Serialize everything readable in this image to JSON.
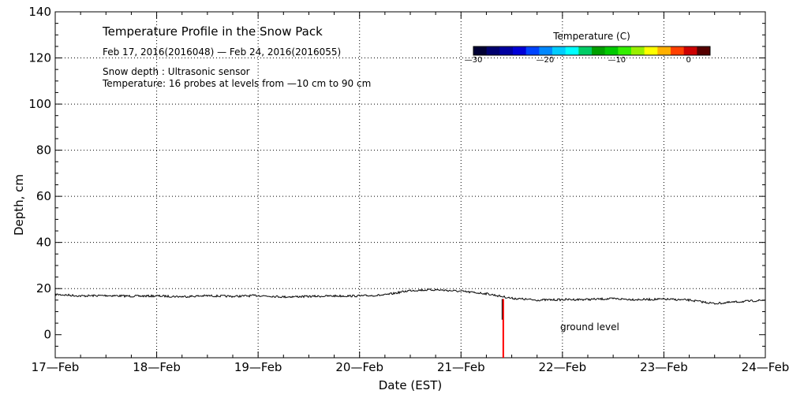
{
  "chart_data": {
    "type": "line",
    "title": "Temperature Profile in the Snow Pack",
    "subtitle": "Feb 17, 2016(2016048) — Feb 24, 2016(2016055)",
    "notes": [
      "Snow depth : Ultrasonic sensor",
      "Temperature: 16 probes at levels from —10 cm to 90 cm"
    ],
    "xlabel": "Date (EST)",
    "ylabel": "Depth, cm",
    "xlim": [
      "17-Feb",
      "24-Feb"
    ],
    "ylim": [
      -10,
      140
    ],
    "x_ticks": [
      "17—Feb",
      "18—Feb",
      "19—Feb",
      "20—Feb",
      "21—Feb",
      "22—Feb",
      "23—Feb",
      "24—Feb"
    ],
    "y_ticks": [
      "0",
      "20",
      "40",
      "60",
      "80",
      "100",
      "120",
      "140"
    ],
    "grid": true,
    "annotation": "ground level",
    "series": [
      {
        "color": "#000000",
        "x": [
          "17-Feb 00:00",
          "17-Feb 06:00",
          "17-Feb 12:00",
          "17-Feb 18:00",
          "18-Feb 00:00",
          "18-Feb 06:00",
          "18-Feb 12:00",
          "18-Feb 18:00",
          "19-Feb 00:00",
          "19-Feb 06:00",
          "19-Feb 12:00",
          "19-Feb 18:00",
          "20-Feb 00:00",
          "20-Feb 06:00",
          "20-Feb 12:00",
          "20-Feb 18:00",
          "21-Feb 00:00",
          "21-Feb 06:00",
          "21-Feb 12:00",
          "21-Feb 18:00",
          "22-Feb 00:00",
          "22-Feb 06:00",
          "22-Feb 12:00",
          "22-Feb 18:00",
          "23-Feb 00:00",
          "23-Feb 06:00",
          "23-Feb 12:00",
          "23-Feb 18:00",
          "24-Feb 00:00"
        ],
        "y": [
          17.5,
          16.8,
          17.0,
          16.7,
          16.8,
          16.5,
          16.9,
          16.6,
          17.0,
          16.4,
          16.6,
          16.8,
          16.8,
          17.2,
          19.2,
          19.5,
          18.8,
          17.8,
          15.8,
          15.0,
          15.2,
          15.3,
          15.6,
          15.2,
          15.4,
          15.0,
          13.5,
          14.3,
          15.0
        ]
      }
    ],
    "colorbar": {
      "label": "Temperature (C)",
      "ticks": [
        "—30",
        "—20",
        "—10",
        "0"
      ],
      "colors": [
        "#000033",
        "#00006e",
        "#0000a0",
        "#0000d8",
        "#0044ff",
        "#0088ff",
        "#00ccff",
        "#00ffff",
        "#00cc66",
        "#00a000",
        "#00c800",
        "#33ee00",
        "#99f000",
        "#ffff00",
        "#ffb000",
        "#ff4000",
        "#cc0000",
        "#550000"
      ]
    },
    "red_marker": {
      "x": "21-Feb 10:00",
      "y_from": -10,
      "y_to": 15.5,
      "color": "#ff0000"
    }
  }
}
